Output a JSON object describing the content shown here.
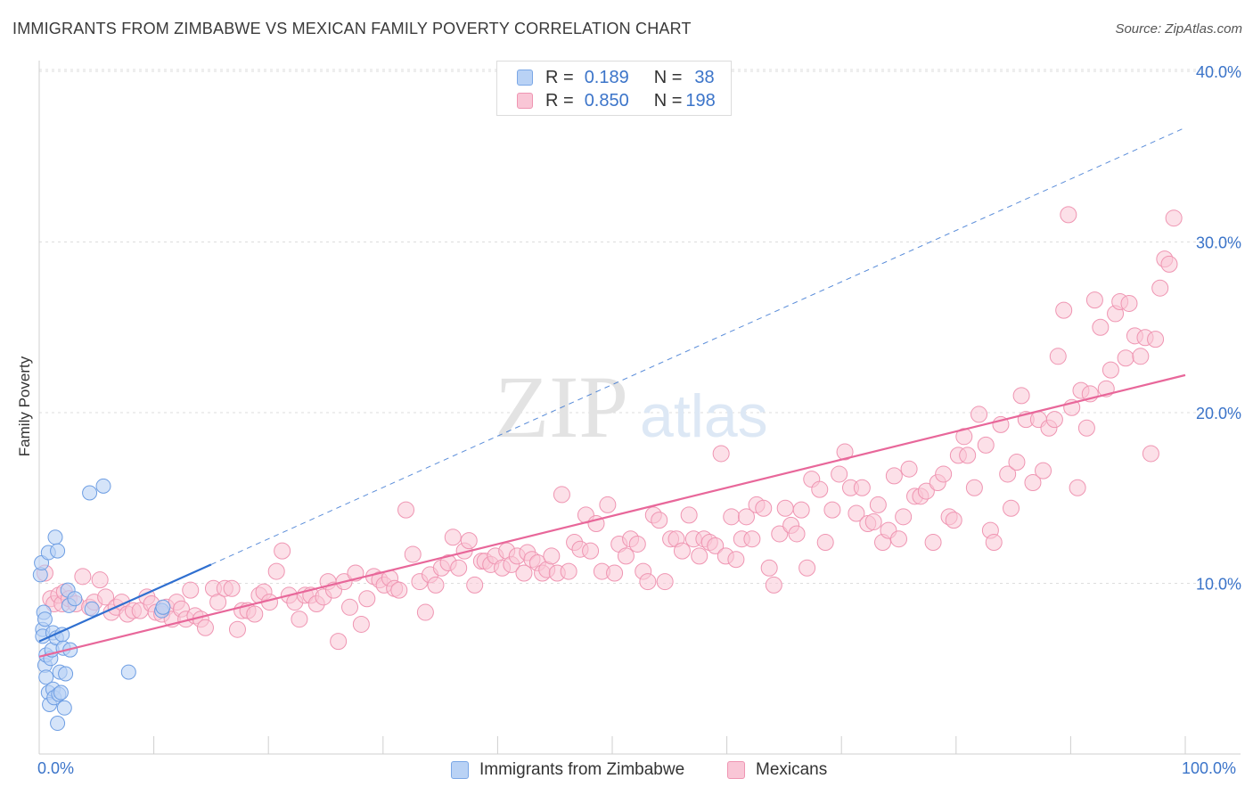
{
  "title": "IMMIGRANTS FROM ZIMBABWE VS MEXICAN FAMILY POVERTY CORRELATION CHART",
  "source": "Source: ZipAtlas.com",
  "watermark": {
    "zip": "ZIP",
    "atlas": "atlas"
  },
  "legend_stats": [
    {
      "r_label": "R =",
      "r_value": "0.189",
      "n_label": "N =",
      "n_value": "38",
      "fill": "#b9d2f5",
      "stroke": "#7aa7e6"
    },
    {
      "r_label": "R =",
      "r_value": "0.850",
      "n_label": "N =",
      "n_value": "198",
      "fill": "#f9c6d6",
      "stroke": "#ef95b2"
    }
  ],
  "chart_data": {
    "type": "scatter",
    "title": "IMMIGRANTS FROM ZIMBABWE VS MEXICAN FAMILY POVERTY CORRELATION CHART",
    "xlabel": "",
    "ylabel": "Family Poverty",
    "x_unit": "%",
    "y_unit": "%",
    "xlim": [
      0,
      100
    ],
    "ylim": [
      0,
      42
    ],
    "x_tick_labels": [
      "0.0%",
      "100.0%"
    ],
    "y_ticks": [
      10,
      20,
      30,
      40
    ],
    "y_tick_labels": [
      "10.0%",
      "20.0%",
      "30.0%",
      "40.0%"
    ],
    "grid": "horizontal-dashed",
    "legend_position": "bottom-center",
    "colors": {
      "zimbabwe_fill": "#b9d2f5",
      "zimbabwe_stroke": "#6e9ee3",
      "zimbabwe_line": "#2f6fd0",
      "mexican_fill": "#f9c6d6",
      "mexican_stroke": "#ef95b2",
      "mexican_line": "#e8679a",
      "axis_text": "#3b74c9",
      "grid": "#dddddd"
    },
    "series": [
      {
        "name": "Immigrants from Zimbabwe",
        "r": 0.189,
        "n": 38,
        "trend": {
          "x": [
            0,
            15
          ],
          "y": [
            6.6,
            11.1
          ],
          "dashed_extension_to": [
            100,
            36.7
          ]
        },
        "points": [
          [
            0.1,
            10.5
          ],
          [
            0.2,
            11.2
          ],
          [
            0.3,
            7.3
          ],
          [
            0.3,
            6.9
          ],
          [
            0.4,
            8.3
          ],
          [
            0.5,
            5.2
          ],
          [
            0.5,
            7.9
          ],
          [
            0.6,
            4.5
          ],
          [
            0.6,
            5.8
          ],
          [
            0.8,
            11.8
          ],
          [
            0.8,
            3.6
          ],
          [
            0.9,
            2.9
          ],
          [
            1.0,
            5.6
          ],
          [
            1.1,
            6.1
          ],
          [
            1.2,
            3.8
          ],
          [
            1.2,
            7.1
          ],
          [
            1.3,
            3.3
          ],
          [
            1.4,
            12.7
          ],
          [
            1.5,
            6.8
          ],
          [
            1.6,
            1.8
          ],
          [
            1.6,
            11.9
          ],
          [
            1.7,
            3.5
          ],
          [
            1.8,
            4.8
          ],
          [
            1.9,
            3.6
          ],
          [
            2.0,
            7.0
          ],
          [
            2.1,
            6.2
          ],
          [
            2.2,
            2.7
          ],
          [
            2.3,
            4.7
          ],
          [
            2.5,
            9.6
          ],
          [
            2.6,
            8.7
          ],
          [
            2.7,
            6.1
          ],
          [
            3.1,
            9.1
          ],
          [
            4.4,
            15.3
          ],
          [
            4.6,
            8.5
          ],
          [
            5.6,
            15.7
          ],
          [
            7.8,
            4.8
          ],
          [
            10.7,
            8.4
          ],
          [
            10.8,
            8.6
          ]
        ]
      },
      {
        "name": "Mexicans",
        "r": 0.85,
        "n": 198,
        "trend": {
          "x": [
            0,
            100
          ],
          "y": [
            5.7,
            22.2
          ]
        },
        "points": [
          [
            0.5,
            10.6
          ],
          [
            1.0,
            9.1
          ],
          [
            1.3,
            8.8
          ],
          [
            1.7,
            9.3
          ],
          [
            2.0,
            8.8
          ],
          [
            2.2,
            9.5
          ],
          [
            2.6,
            9.1
          ],
          [
            3.2,
            8.8
          ],
          [
            3.8,
            10.4
          ],
          [
            4.4,
            8.6
          ],
          [
            4.8,
            8.9
          ],
          [
            5.3,
            10.2
          ],
          [
            5.8,
            9.2
          ],
          [
            6.3,
            8.3
          ],
          [
            6.7,
            8.6
          ],
          [
            7.2,
            8.9
          ],
          [
            7.7,
            8.2
          ],
          [
            8.2,
            8.4
          ],
          [
            8.8,
            8.4
          ],
          [
            9.4,
            9.2
          ],
          [
            9.8,
            8.8
          ],
          [
            10.2,
            8.3
          ],
          [
            10.7,
            8.2
          ],
          [
            11.1,
            8.6
          ],
          [
            11.6,
            7.9
          ],
          [
            12.0,
            8.9
          ],
          [
            12.4,
            8.5
          ],
          [
            12.8,
            7.9
          ],
          [
            13.2,
            9.6
          ],
          [
            13.6,
            8.1
          ],
          [
            14.1,
            7.9
          ],
          [
            14.5,
            7.4
          ],
          [
            15.2,
            9.7
          ],
          [
            15.6,
            8.9
          ],
          [
            16.2,
            9.7
          ],
          [
            16.8,
            9.7
          ],
          [
            17.3,
            7.3
          ],
          [
            17.7,
            8.4
          ],
          [
            18.2,
            8.4
          ],
          [
            18.8,
            8.2
          ],
          [
            19.2,
            9.3
          ],
          [
            19.6,
            9.5
          ],
          [
            20.1,
            8.9
          ],
          [
            20.7,
            10.7
          ],
          [
            21.2,
            11.9
          ],
          [
            21.8,
            9.3
          ],
          [
            22.3,
            8.9
          ],
          [
            22.7,
            7.9
          ],
          [
            23.2,
            9.3
          ],
          [
            23.7,
            9.3
          ],
          [
            24.2,
            8.8
          ],
          [
            24.8,
            9.2
          ],
          [
            25.2,
            10.1
          ],
          [
            25.7,
            9.6
          ],
          [
            26.1,
            6.6
          ],
          [
            26.6,
            10.1
          ],
          [
            27.1,
            8.6
          ],
          [
            27.6,
            10.6
          ],
          [
            28.1,
            7.6
          ],
          [
            28.6,
            9.1
          ],
          [
            29.2,
            10.4
          ],
          [
            29.7,
            10.2
          ],
          [
            30.1,
            9.9
          ],
          [
            30.6,
            10.3
          ],
          [
            31.0,
            9.7
          ],
          [
            31.4,
            9.6
          ],
          [
            32.0,
            14.3
          ],
          [
            32.6,
            11.7
          ],
          [
            33.2,
            10.1
          ],
          [
            33.7,
            8.3
          ],
          [
            34.1,
            10.5
          ],
          [
            34.6,
            9.9
          ],
          [
            35.1,
            10.9
          ],
          [
            35.7,
            11.2
          ],
          [
            36.1,
            12.7
          ],
          [
            36.6,
            10.9
          ],
          [
            37.1,
            11.9
          ],
          [
            37.5,
            12.5
          ],
          [
            38.0,
            9.9
          ],
          [
            38.6,
            11.3
          ],
          [
            38.9,
            11.3
          ],
          [
            39.4,
            11.1
          ],
          [
            39.8,
            11.6
          ],
          [
            40.4,
            10.9
          ],
          [
            40.8,
            11.9
          ],
          [
            41.2,
            11.1
          ],
          [
            41.7,
            11.6
          ],
          [
            42.3,
            10.6
          ],
          [
            42.6,
            11.8
          ],
          [
            43.0,
            11.4
          ],
          [
            43.5,
            11.2
          ],
          [
            43.9,
            10.6
          ],
          [
            44.3,
            10.8
          ],
          [
            44.7,
            11.6
          ],
          [
            45.2,
            10.6
          ],
          [
            45.6,
            15.2
          ],
          [
            46.2,
            10.7
          ],
          [
            46.7,
            12.4
          ],
          [
            47.2,
            12.0
          ],
          [
            47.7,
            14.0
          ],
          [
            48.1,
            11.9
          ],
          [
            48.6,
            13.5
          ],
          [
            49.1,
            10.7
          ],
          [
            49.6,
            14.6
          ],
          [
            50.2,
            10.6
          ],
          [
            50.6,
            12.3
          ],
          [
            51.2,
            11.6
          ],
          [
            51.6,
            12.6
          ],
          [
            52.2,
            12.3
          ],
          [
            52.7,
            10.7
          ],
          [
            53.1,
            10.1
          ],
          [
            53.6,
            14.0
          ],
          [
            54.1,
            13.7
          ],
          [
            54.6,
            10.1
          ],
          [
            55.1,
            12.6
          ],
          [
            55.6,
            12.6
          ],
          [
            56.1,
            11.9
          ],
          [
            56.7,
            14.0
          ],
          [
            57.1,
            12.6
          ],
          [
            57.6,
            11.6
          ],
          [
            58.0,
            12.6
          ],
          [
            58.5,
            12.4
          ],
          [
            59.0,
            12.2
          ],
          [
            59.5,
            17.6
          ],
          [
            59.9,
            11.6
          ],
          [
            60.4,
            13.9
          ],
          [
            60.8,
            11.4
          ],
          [
            61.3,
            12.6
          ],
          [
            61.7,
            13.9
          ],
          [
            62.2,
            12.6
          ],
          [
            62.6,
            14.6
          ],
          [
            63.2,
            14.4
          ],
          [
            63.7,
            10.9
          ],
          [
            64.1,
            9.9
          ],
          [
            64.6,
            12.9
          ],
          [
            65.1,
            14.4
          ],
          [
            65.6,
            13.4
          ],
          [
            66.1,
            12.9
          ],
          [
            66.5,
            14.3
          ],
          [
            67.0,
            10.9
          ],
          [
            67.4,
            16.1
          ],
          [
            68.1,
            15.5
          ],
          [
            68.6,
            12.4
          ],
          [
            69.2,
            14.3
          ],
          [
            69.8,
            16.4
          ],
          [
            70.3,
            17.7
          ],
          [
            70.8,
            15.6
          ],
          [
            71.3,
            14.1
          ],
          [
            71.8,
            15.6
          ],
          [
            72.3,
            13.5
          ],
          [
            72.8,
            13.6
          ],
          [
            73.2,
            14.6
          ],
          [
            73.6,
            12.4
          ],
          [
            74.1,
            13.1
          ],
          [
            74.6,
            16.3
          ],
          [
            75.0,
            12.6
          ],
          [
            75.4,
            13.9
          ],
          [
            75.9,
            16.7
          ],
          [
            76.4,
            15.1
          ],
          [
            76.9,
            15.1
          ],
          [
            77.4,
            15.4
          ],
          [
            78.0,
            12.4
          ],
          [
            78.4,
            15.9
          ],
          [
            78.9,
            16.4
          ],
          [
            79.4,
            13.9
          ],
          [
            79.8,
            13.7
          ],
          [
            80.2,
            17.5
          ],
          [
            80.7,
            18.6
          ],
          [
            81.0,
            17.5
          ],
          [
            81.6,
            15.6
          ],
          [
            82.0,
            19.9
          ],
          [
            82.6,
            18.1
          ],
          [
            83.0,
            13.1
          ],
          [
            83.3,
            12.4
          ],
          [
            83.9,
            19.3
          ],
          [
            84.5,
            16.4
          ],
          [
            84.8,
            14.4
          ],
          [
            85.3,
            17.1
          ],
          [
            85.7,
            21.0
          ],
          [
            86.1,
            19.6
          ],
          [
            86.7,
            15.9
          ],
          [
            87.2,
            19.6
          ],
          [
            87.6,
            16.6
          ],
          [
            88.1,
            19.1
          ],
          [
            88.6,
            19.6
          ],
          [
            88.9,
            23.3
          ],
          [
            89.4,
            26.0
          ],
          [
            89.8,
            31.6
          ],
          [
            90.1,
            20.3
          ],
          [
            90.6,
            15.6
          ],
          [
            90.9,
            21.3
          ],
          [
            91.4,
            19.1
          ],
          [
            91.7,
            21.1
          ],
          [
            92.1,
            26.6
          ],
          [
            92.6,
            25.0
          ],
          [
            93.1,
            21.4
          ],
          [
            93.5,
            22.5
          ],
          [
            93.9,
            25.8
          ],
          [
            94.3,
            26.5
          ],
          [
            94.8,
            23.2
          ],
          [
            95.1,
            26.4
          ],
          [
            95.6,
            24.5
          ],
          [
            96.1,
            23.3
          ],
          [
            96.5,
            24.4
          ],
          [
            97.0,
            17.6
          ],
          [
            97.4,
            24.3
          ],
          [
            97.8,
            27.3
          ],
          [
            98.2,
            29.0
          ],
          [
            98.6,
            28.7
          ],
          [
            99.0,
            31.4
          ]
        ]
      }
    ]
  },
  "legend_bottom": [
    {
      "label": "Immigrants from Zimbabwe",
      "fill": "#b9d2f5",
      "stroke": "#7aa7e6"
    },
    {
      "label": "Mexicans",
      "fill": "#f9c6d6",
      "stroke": "#ef95b2"
    }
  ]
}
